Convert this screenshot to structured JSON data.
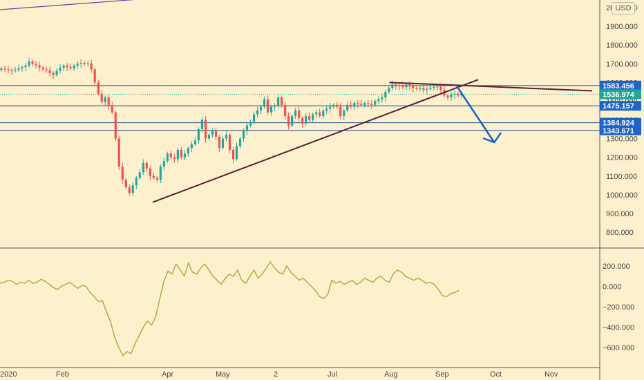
{
  "currency": "USD",
  "colors": {
    "background": "#fdf1cd",
    "up": "#26a69a",
    "down": "#ef5350",
    "hline": "#1e4f9c",
    "trendline": "#5a1d38",
    "arrow": "#1565c0",
    "oscillator": "#b5a33a",
    "label_blue": "#1e63c8",
    "label_teal": "#1ea696"
  },
  "chart_data": [
    {
      "type": "candlestick",
      "price_axis_ticks": [
        "2000.000",
        "1900.000",
        "1800.000",
        "1700.000",
        "1600.000",
        "1500.000",
        "1400.000",
        "1300.000",
        "1200.000",
        "1100.000",
        "1000.000",
        "900.000",
        "800.000"
      ],
      "ylim": [
        760,
        2020
      ],
      "time_axis_labels": [
        "2020",
        "Feb",
        "Apr",
        "May",
        "2",
        "Jul",
        "Aug",
        "Sep",
        "Oct",
        "Nov"
      ],
      "horizontal_levels": [
        1583.456,
        1475.157,
        1384.924,
        1343.671
      ],
      "price_labels": [
        {
          "text": "1583.456",
          "value": 1583.456,
          "style": "blue"
        },
        {
          "text": "1536.974",
          "value": 1536.974,
          "style": "teal"
        },
        {
          "text": "1475.157",
          "value": 1475.157,
          "style": "blue"
        },
        {
          "text": "1384.924",
          "value": 1384.924,
          "style": "blue"
        },
        {
          "text": "1343.671",
          "value": 1343.671,
          "style": "blue"
        }
      ],
      "current_price": 1536.974,
      "close_series": [
        1675,
        1670,
        1668,
        1662,
        1668,
        1675,
        1682,
        1690,
        1712,
        1700,
        1692,
        1680,
        1670,
        1665,
        1650,
        1640,
        1662,
        1678,
        1690,
        1682,
        1675,
        1690,
        1700,
        1705,
        1698,
        1702,
        1670,
        1600,
        1540,
        1495,
        1520,
        1475,
        1440,
        1300,
        1150,
        1080,
        1040,
        1010,
        1050,
        1090,
        1120,
        1170,
        1140,
        1100,
        1090,
        1080,
        1150,
        1180,
        1220,
        1200,
        1190,
        1240,
        1200,
        1220,
        1250,
        1270,
        1290,
        1350,
        1400,
        1300,
        1320,
        1340,
        1310,
        1250,
        1300,
        1320,
        1240,
        1190,
        1260,
        1300,
        1340,
        1370,
        1390,
        1430,
        1450,
        1470,
        1510,
        1440,
        1470,
        1475,
        1520,
        1480,
        1420,
        1370,
        1420,
        1450,
        1410,
        1380,
        1420,
        1400,
        1430,
        1440,
        1420,
        1450,
        1460,
        1470,
        1480,
        1470,
        1420,
        1450,
        1480,
        1470,
        1490,
        1485,
        1480,
        1490,
        1485,
        1480,
        1500,
        1510,
        1520,
        1550,
        1570,
        1590,
        1580,
        1585,
        1575,
        1590,
        1580,
        1570,
        1565,
        1570,
        1560,
        1565,
        1572,
        1575,
        1578,
        1560,
        1530,
        1520,
        1535,
        1540,
        1530,
        1537
      ],
      "trendlines": [
        {
          "from": {
            "date": "2020-03-23",
            "price": 960
          },
          "to": {
            "date": "2020-09-22",
            "price": 1615
          }
        },
        {
          "from": {
            "date": "2020-08-03",
            "price": 1600
          },
          "to": {
            "date": "2020-11-25",
            "price": 1555
          }
        }
      ],
      "projection_arrow": {
        "from": {
          "date": "2020-09-10",
          "price": 1580
        },
        "to": {
          "date": "2020-10-01",
          "price": 1280
        }
      }
    },
    {
      "type": "line",
      "ticks": [
        "200.000",
        "0.000",
        "−200.000",
        "−400.000",
        "−600.000"
      ],
      "ylim": [
        -760,
        330
      ],
      "series": [
        {
          "values": [
            30,
            40,
            60,
            50,
            20,
            40,
            30,
            60,
            30,
            40,
            70,
            50,
            20,
            -10,
            -30,
            0,
            20,
            40,
            10,
            -20,
            10,
            0,
            -60,
            -100,
            -150,
            -140,
            -250,
            -350,
            -500,
            -600,
            -680,
            -640,
            -660,
            -560,
            -480,
            -400,
            -340,
            -380,
            -300,
            -120,
            50,
            150,
            120,
            220,
            160,
            100,
            230,
            140,
            120,
            180,
            220,
            160,
            100,
            60,
            20,
            80,
            120,
            100,
            160,
            60,
            30,
            100,
            160,
            80,
            120,
            180,
            240,
            180,
            140,
            120,
            200,
            140,
            100,
            60,
            80,
            40,
            0,
            -40,
            -100,
            -120,
            -80,
            60,
            30,
            50,
            20,
            40,
            60,
            20,
            40,
            80,
            60,
            40,
            80,
            100,
            60,
            40,
            120,
            160,
            140,
            100,
            80,
            60,
            80,
            60,
            30,
            40,
            20,
            -30,
            -90,
            -100,
            -70,
            -60,
            -40
          ]
        }
      ]
    }
  ]
}
